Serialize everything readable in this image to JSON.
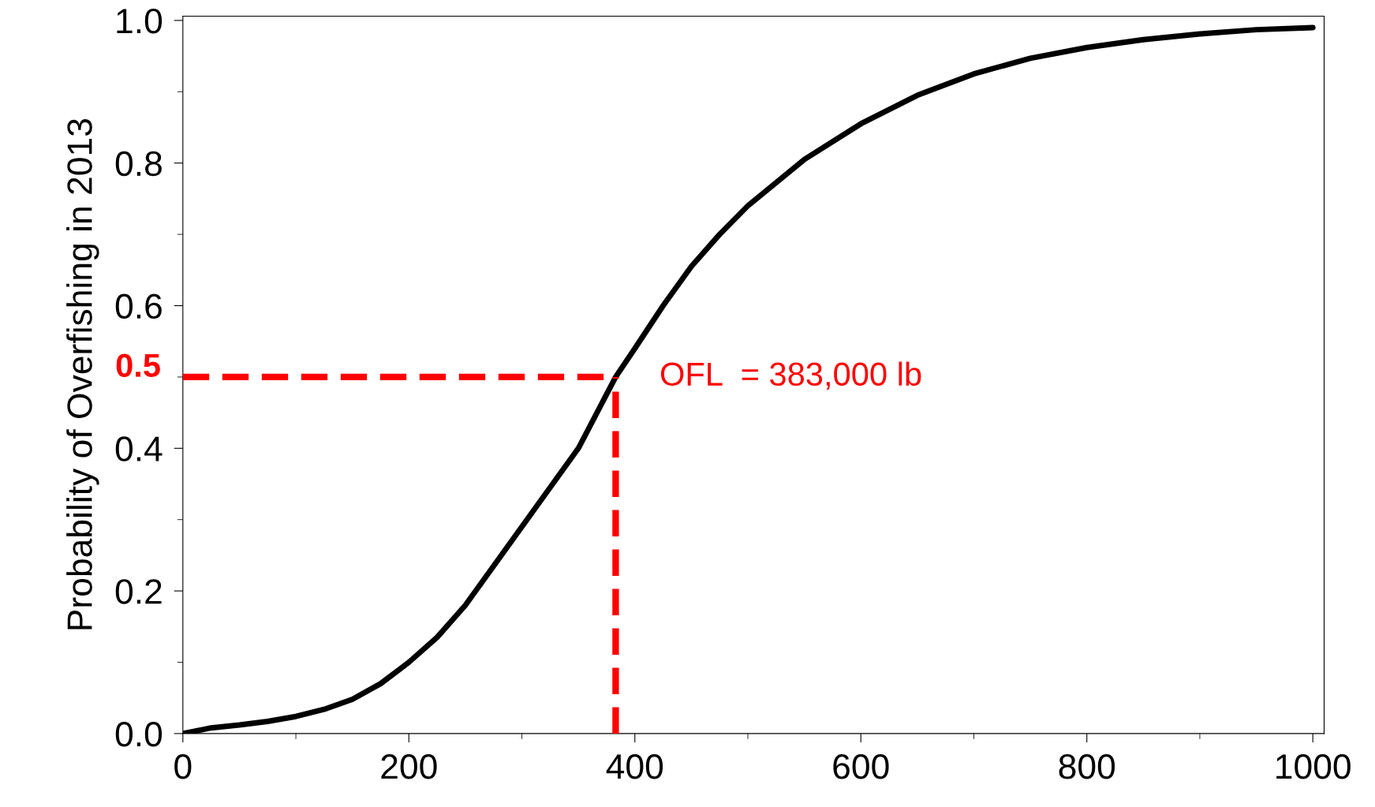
{
  "chart_data": {
    "type": "line",
    "ylabel": "Probability of Overfishing in 2013",
    "series": [
      {
        "color": "#000000",
        "x": [
          0,
          25,
          50,
          75,
          100,
          125,
          150,
          175,
          200,
          225,
          250,
          275,
          300,
          325,
          350,
          383,
          400,
          425,
          450,
          475,
          500,
          550,
          600,
          650,
          700,
          750,
          800,
          850,
          900,
          950,
          1000
        ],
        "values": [
          0.0,
          0.008,
          0.012,
          0.017,
          0.024,
          0.034,
          0.048,
          0.07,
          0.1,
          0.135,
          0.18,
          0.235,
          0.29,
          0.345,
          0.4,
          0.5,
          0.54,
          0.6,
          0.655,
          0.7,
          0.74,
          0.805,
          0.855,
          0.895,
          0.925,
          0.947,
          0.962,
          0.973,
          0.981,
          0.987,
          0.99
        ]
      }
    ],
    "xlim": [
      0,
      1010
    ],
    "ylim": [
      0,
      1.006
    ],
    "xticks": [
      0,
      200,
      400,
      600,
      800,
      1000
    ],
    "yticks": [
      {
        "value": 0,
        "label": "0.0"
      },
      0.2,
      0.4,
      0.6,
      0.8,
      {
        "value": 1,
        "label": "1.0"
      }
    ],
    "ref_lines": [
      {
        "axis": "y",
        "value": 0.5,
        "label": "0.5",
        "color": "#ff0000",
        "line_style": "dashed"
      },
      {
        "axis": "x",
        "value": 383,
        "color": "#ff0000",
        "line_style": "dashed"
      }
    ],
    "annotations": [
      {
        "text": "OFL  = 383,000 lb",
        "x": 383,
        "y": 0.5
      }
    ],
    "grid": false,
    "legend": false,
    "marker": "none",
    "line_style": "solid"
  }
}
